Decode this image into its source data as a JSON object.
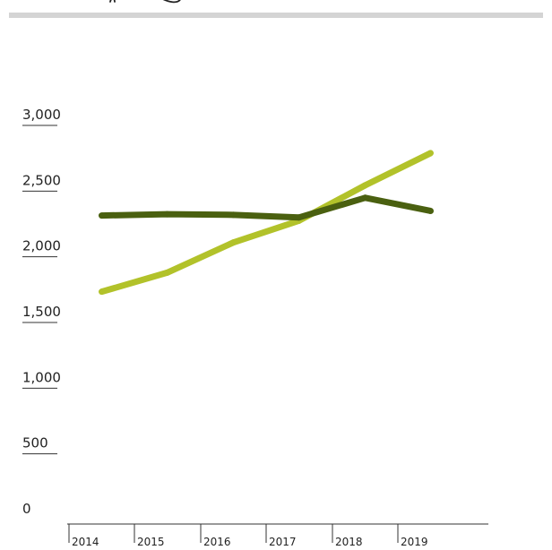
{
  "chart_data": {
    "type": "line",
    "title": "",
    "xlabel": "",
    "ylabel": "",
    "x": [
      "2014",
      "2015",
      "2016",
      "2017",
      "2018",
      "2019"
    ],
    "ylim": [
      0,
      3000
    ],
    "y_ticks": [
      "0",
      "500",
      "1,000",
      "1,500",
      "2,000",
      "2,500",
      "3,000"
    ],
    "series": [
      {
        "color": "#b2c22a",
        "points": [
          {
            "x": "2014",
            "y": 1700
          },
          {
            "x": "2015",
            "y": 1845
          },
          {
            "x": "2016",
            "y": 2075
          },
          {
            "x": "2017",
            "y": 2240
          },
          {
            "x": "2018",
            "y": 2510
          },
          {
            "x": "2019",
            "y": 2755
          }
        ]
      },
      {
        "color": "#4a6010",
        "points": [
          {
            "x": "2014",
            "y": 2280
          },
          {
            "x": "2015",
            "y": 2290
          },
          {
            "x": "2016",
            "y": 2285
          },
          {
            "x": "2017",
            "y": 2265
          },
          {
            "x": "2018",
            "y": 2415
          },
          {
            "x": "2019",
            "y": 2315
          }
        ]
      }
    ],
    "grid": false,
    "legend": "none"
  },
  "colors": {
    "top_rule": "#d4d4d4",
    "axis": "#333333",
    "text": "#222222"
  }
}
